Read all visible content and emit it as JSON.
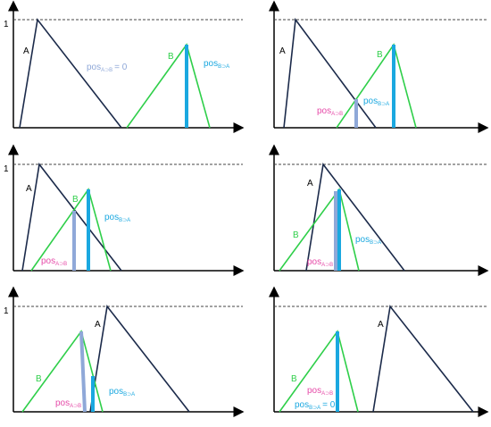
{
  "colors": {
    "axis": "#000000",
    "triangle_A": "#1b2a4a",
    "triangle_B": "#2fcf4a",
    "pos_a_in_b": "#8fa8d8",
    "pos_b_in_a": "#1aa8e0",
    "label_pos_a": "#e64aa8",
    "label_pos_b": "#1aa8e0",
    "dashed": "#444444"
  },
  "labels": {
    "A": "A",
    "B": "B",
    "one": "1",
    "pos": "pos",
    "sub_a_in_b": "A⊃B",
    "sub_b_in_a": "B⊃A",
    "sub_panel1": "A⊃B",
    "eq_zero": "= 0"
  },
  "panels": [
    {
      "id": "p1",
      "show_one": true,
      "pos_a_label": false,
      "pos_b_label": true,
      "zero_label": "a"
    },
    {
      "id": "p2",
      "show_one": false,
      "pos_a_label": true,
      "pos_b_label": true,
      "zero_label": null
    },
    {
      "id": "p3",
      "show_one": true,
      "pos_a_label": true,
      "pos_b_label": true,
      "zero_label": null
    },
    {
      "id": "p4",
      "show_one": false,
      "pos_a_label": true,
      "pos_b_label": true,
      "zero_label": null
    },
    {
      "id": "p5",
      "show_one": true,
      "pos_a_label": true,
      "pos_b_label": true,
      "zero_label": null
    },
    {
      "id": "p6",
      "show_one": false,
      "pos_a_label": true,
      "pos_b_label": true,
      "zero_label": "b"
    }
  ]
}
